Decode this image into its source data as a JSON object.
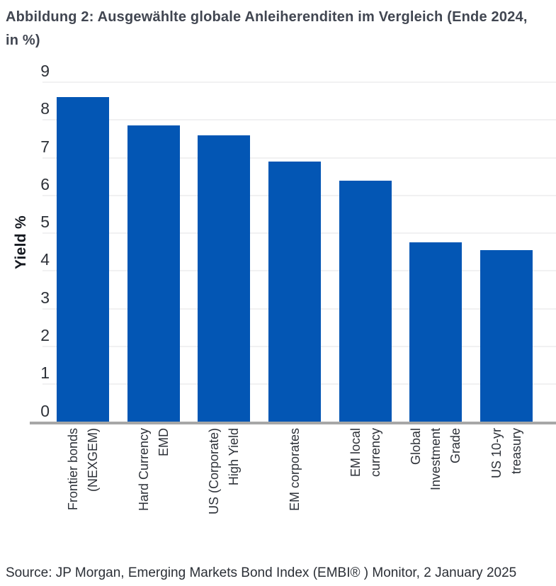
{
  "title": {
    "line1": "Abbildung 2: Ausgewählte globale Anleiherenditen im Vergleich (Ende 2024,",
    "line2": "in %)"
  },
  "source": "Source: JP Morgan, Emerging Markets Bond Index (EMBI® ) Monitor, 2 January 2025",
  "colors": {
    "bar": "#0356b4",
    "title_text": "#414651",
    "tick_text": "#2d3138",
    "axis_line": "#a7a7a7",
    "gridline": "#f1f1f2",
    "background": "#ffffff"
  },
  "chart_data": {
    "type": "bar",
    "title": "Abbildung 2: Ausgewählte globale Anleiherenditen im Vergleich (Ende 2024, in %)",
    "categories": [
      "Frontier bonds (NEXGEM)",
      "Hard Currency EMD",
      "US (Corporate) High Yield",
      "EM corporates",
      "EM local currency",
      "Global Investment Grade",
      "US 10-yr treasury"
    ],
    "category_lines": [
      [
        "Frontier bonds",
        "(NEXGEM)"
      ],
      [
        "Hard Currency",
        "EMD"
      ],
      [
        "US (Corporate)",
        "High Yield"
      ],
      [
        "EM corporates"
      ],
      [
        "EM local",
        "currency"
      ],
      [
        "Global",
        "Investment",
        "Grade"
      ],
      [
        "US 10-yr",
        "treasury"
      ]
    ],
    "values": [
      8.6,
      7.85,
      7.6,
      6.9,
      6.4,
      4.75,
      4.55
    ],
    "xlabel": "",
    "ylabel": "Yield %",
    "ylim": [
      0,
      9
    ],
    "ytick_step": 1,
    "yticks": [
      0,
      1,
      2,
      3,
      4,
      5,
      6,
      7,
      8,
      9
    ],
    "grid": true,
    "legend_position": "none",
    "bar_color": "#0356b4",
    "source_note": "Source: JP Morgan, Emerging Markets Bond Index (EMBI® ) Monitor, 2 January 2025"
  }
}
